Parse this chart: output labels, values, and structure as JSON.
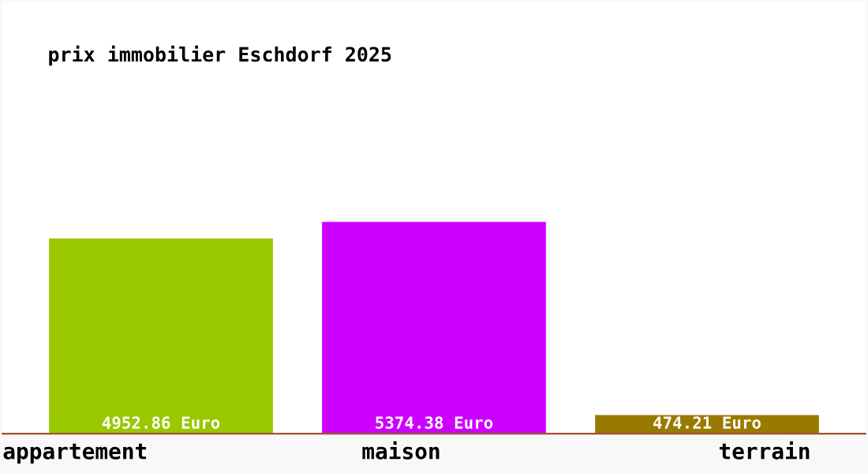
{
  "chart_data": {
    "type": "bar",
    "title": "prix immobilier Eschdorf 2025",
    "categories": [
      "appartement",
      "maison",
      "terrain"
    ],
    "values": [
      4952.86,
      5374.38,
      474.21
    ],
    "colors": [
      "#99c700",
      "#cc00ff",
      "#997a00"
    ],
    "value_labels": [
      "4952.86 Euro",
      "5374.38 Euro",
      "474.21 Euro"
    ]
  }
}
